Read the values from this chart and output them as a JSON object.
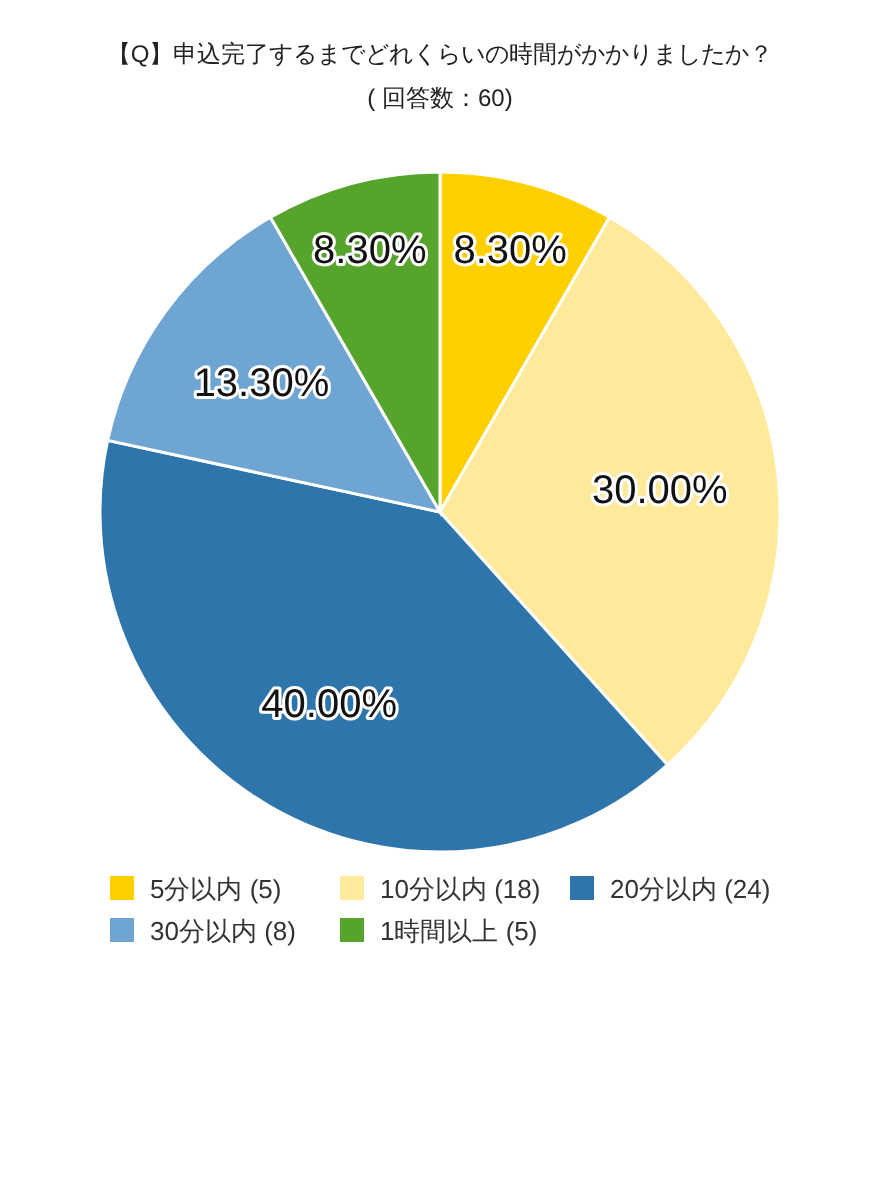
{
  "chart_data": {
    "type": "pie",
    "title": "【Q】申込完了するまでどれくらいの時間がかかりましたか？",
    "subtitle": "( 回答数：60)",
    "categories": [
      "5分以内 (5)",
      "10分以内 (18)",
      "20分以内 (24)",
      "30分以内 (8)",
      "1時間以上 (5)"
    ],
    "values": [
      8.3,
      30,
      40,
      13.3,
      8.3
    ],
    "value_labels": [
      "8.30%",
      "30.00%",
      "40.00%",
      "13.30%",
      "8.30%"
    ],
    "colors": [
      "#ffd000",
      "#ffe99a",
      "#2e75ac",
      "#6fa5d3",
      "#56a42c"
    ],
    "legend": "bottom"
  }
}
